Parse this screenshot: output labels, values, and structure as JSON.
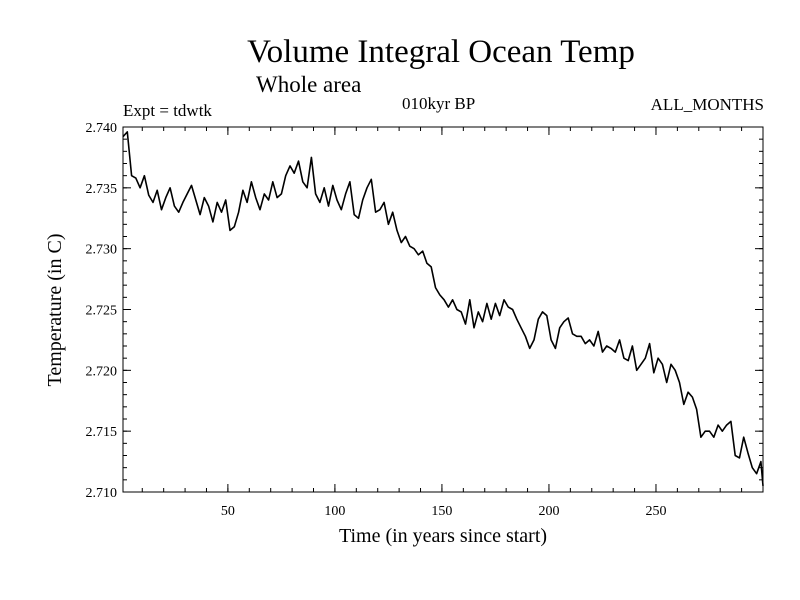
{
  "header": {
    "title": "Volume Integral Ocean Temp",
    "subtitle": "Whole area",
    "experiment": "Expt = tdwtk",
    "period": "010kyr BP",
    "months": "ALL_MONTHS"
  },
  "chart_data": {
    "type": "line",
    "title": "Volume Integral Ocean Temp",
    "subtitle": "Whole area",
    "xlabel": "Time (in years since start)",
    "ylabel": "Temperature (in C)",
    "xlim": [
      1,
      300
    ],
    "ylim": [
      2.71,
      2.74
    ],
    "xticks": [
      50,
      100,
      150,
      200,
      250
    ],
    "xtick_labels": [
      "50",
      "100",
      "150",
      "200",
      "250"
    ],
    "yticks": [
      2.71,
      2.715,
      2.72,
      2.725,
      2.73,
      2.735,
      2.74
    ],
    "ytick_labels": [
      "2.710",
      "2.715",
      "2.720",
      "2.725",
      "2.730",
      "2.735",
      "2.740"
    ],
    "grid": false,
    "series": [
      {
        "name": "Volume Integral Ocean Temp",
        "x": [
          1,
          3,
          5,
          7,
          9,
          11,
          13,
          15,
          17,
          19,
          21,
          23,
          25,
          27,
          29,
          31,
          33,
          35,
          37,
          39,
          41,
          43,
          45,
          47,
          49,
          51,
          53,
          55,
          57,
          59,
          61,
          63,
          65,
          67,
          69,
          71,
          73,
          75,
          77,
          79,
          81,
          83,
          85,
          87,
          89,
          91,
          93,
          95,
          97,
          99,
          101,
          103,
          105,
          107,
          109,
          111,
          113,
          115,
          117,
          119,
          121,
          123,
          125,
          127,
          129,
          131,
          133,
          135,
          137,
          139,
          141,
          143,
          145,
          147,
          149,
          151,
          153,
          155,
          157,
          159,
          161,
          163,
          165,
          167,
          169,
          171,
          173,
          175,
          177,
          179,
          181,
          183,
          185,
          187,
          189,
          191,
          193,
          195,
          197,
          199,
          201,
          203,
          205,
          207,
          209,
          211,
          213,
          215,
          217,
          219,
          221,
          223,
          225,
          227,
          229,
          231,
          233,
          235,
          237,
          239,
          241,
          243,
          245,
          247,
          249,
          251,
          253,
          255,
          257,
          259,
          261,
          263,
          265,
          267,
          269,
          271,
          273,
          275,
          277,
          279,
          281,
          283,
          285,
          287,
          289,
          291,
          293,
          295,
          297,
          299,
          300
        ],
        "values": [
          2.7392,
          2.7396,
          2.736,
          2.7358,
          2.735,
          2.736,
          2.7344,
          2.7338,
          2.7348,
          2.7332,
          2.7342,
          2.735,
          2.7335,
          2.733,
          2.7338,
          2.7345,
          2.7352,
          2.734,
          2.7328,
          2.7342,
          2.7335,
          2.7322,
          2.7338,
          2.733,
          2.734,
          2.7315,
          2.7318,
          2.733,
          2.7348,
          2.7338,
          2.7355,
          2.7342,
          2.7332,
          2.7345,
          2.734,
          2.7355,
          2.7342,
          2.7345,
          2.736,
          2.7368,
          2.7362,
          2.7372,
          2.7355,
          2.735,
          2.7375,
          2.7345,
          2.7338,
          2.735,
          2.7335,
          2.7352,
          2.734,
          2.7332,
          2.7345,
          2.7355,
          2.7328,
          2.7325,
          2.734,
          2.735,
          2.7357,
          2.733,
          2.7332,
          2.7338,
          2.732,
          2.733,
          2.7315,
          2.7305,
          2.731,
          2.7302,
          2.73,
          2.7295,
          2.7298,
          2.7288,
          2.7285,
          2.7268,
          2.7262,
          2.7258,
          2.7252,
          2.7258,
          2.725,
          2.7248,
          2.7238,
          2.7258,
          2.7235,
          2.7248,
          2.724,
          2.7255,
          2.7242,
          2.7255,
          2.7245,
          2.7258,
          2.7252,
          2.725,
          2.7242,
          2.7235,
          2.7228,
          2.7218,
          2.7225,
          2.7242,
          2.7248,
          2.7245,
          2.7225,
          2.7218,
          2.7235,
          2.724,
          2.7243,
          2.723,
          2.7228,
          2.7228,
          2.7222,
          2.7225,
          2.722,
          2.7232,
          2.7215,
          2.722,
          2.7218,
          2.7215,
          2.7225,
          2.721,
          2.7208,
          2.722,
          2.72,
          2.7205,
          2.721,
          2.7222,
          2.7198,
          2.721,
          2.7205,
          2.719,
          2.7205,
          2.72,
          2.719,
          2.7172,
          2.7182,
          2.7178,
          2.7168,
          2.7145,
          2.715,
          2.715,
          2.7145,
          2.7155,
          2.715,
          2.7155,
          2.7158,
          2.713,
          2.7128,
          2.7145,
          2.7132,
          2.712,
          2.7115,
          2.7125,
          2.7105
        ]
      }
    ]
  }
}
